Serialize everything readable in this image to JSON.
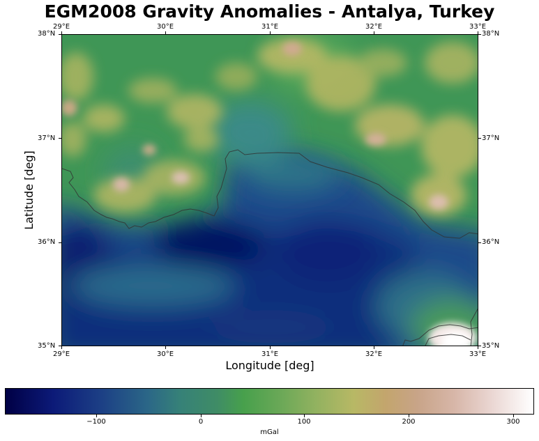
{
  "title": "EGM2008 Gravity Anomalies - Antalya, Turkey",
  "xlabel": "Longitude [deg]",
  "ylabel": "Latitude [deg]",
  "lon_ticks": [
    "29°E",
    "30°E",
    "31°E",
    "32°E",
    "33°E"
  ],
  "lat_ticks": [
    "38°N",
    "37°N",
    "36°N",
    "35°N"
  ],
  "colorbar": {
    "label": "mGal",
    "ticks": [
      "−100",
      "0",
      "100",
      "200",
      "300"
    ],
    "tick_values": [
      -100,
      0,
      100,
      200,
      300
    ],
    "range": [
      -190,
      322
    ],
    "colormap": "gist_earth"
  },
  "map": {
    "lon_range": [
      29,
      33
    ],
    "lat_range": [
      35,
      38
    ],
    "colors": {
      "ocean_low": "#000a5a",
      "ocean_mid": "#1c3f85",
      "shelf": "#3a8a88",
      "land_green": "#4a9a4a",
      "highland": "#b8b865",
      "peak": "#d8b8a8",
      "coastline": "#333333"
    }
  }
}
